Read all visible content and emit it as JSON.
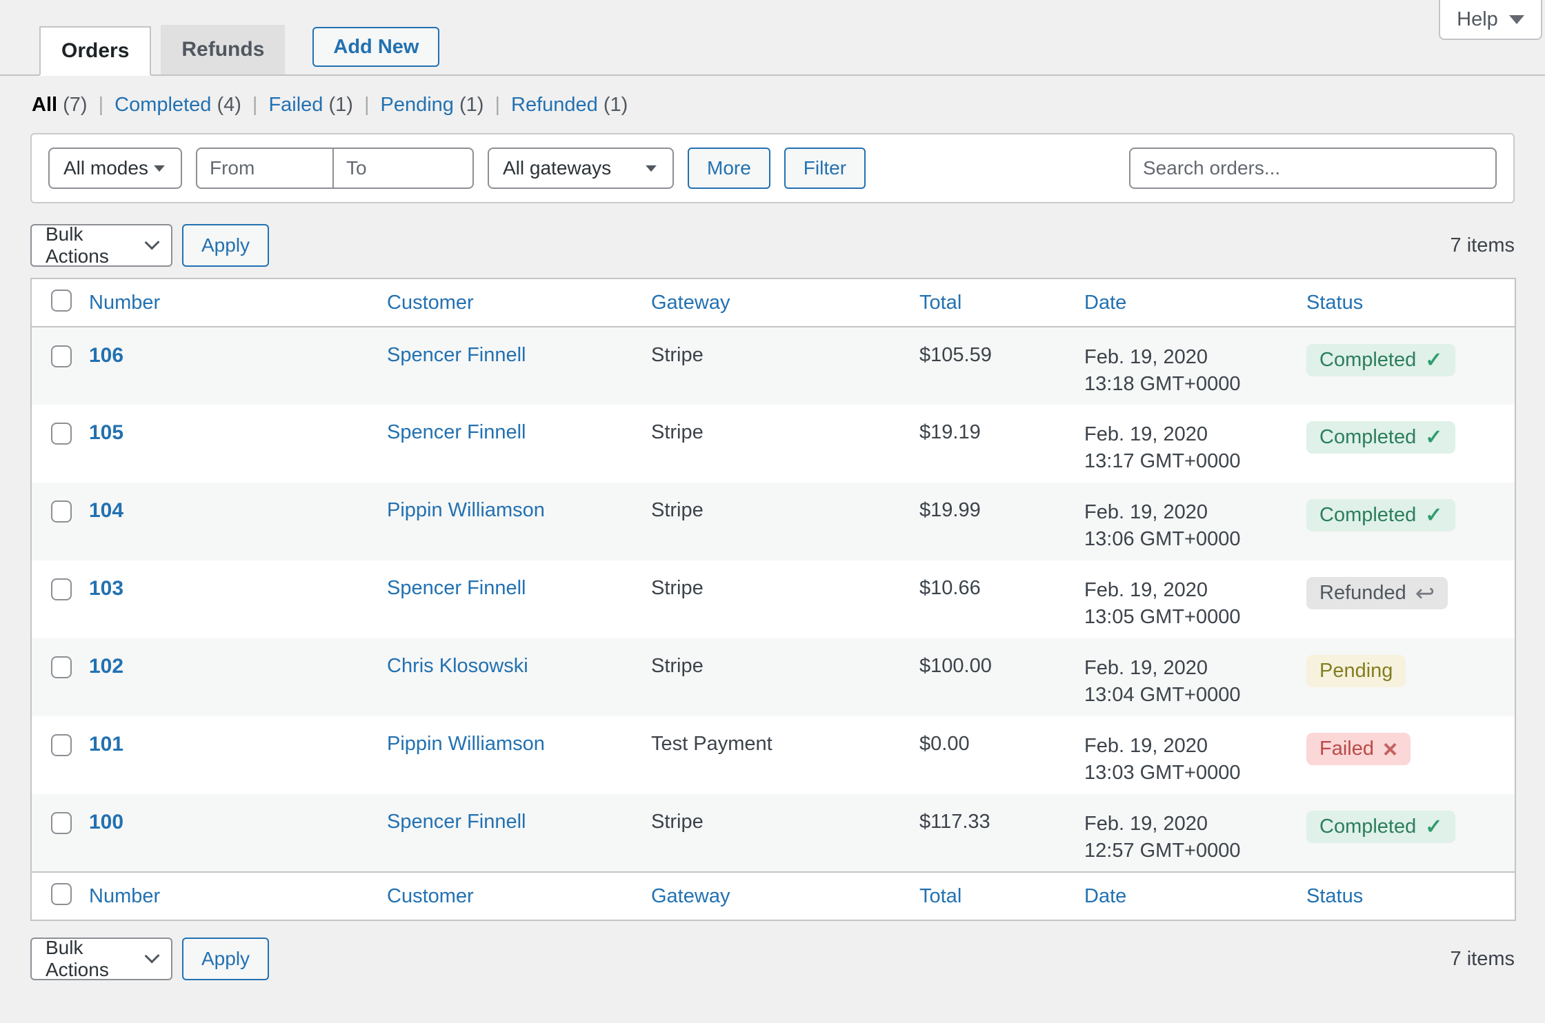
{
  "help": {
    "label": "Help"
  },
  "tabs": {
    "orders": "Orders",
    "refunds": "Refunds",
    "add_new": "Add New"
  },
  "views": {
    "separator": "|",
    "items": [
      {
        "label": "All",
        "count": "(7)",
        "current": true
      },
      {
        "label": "Completed",
        "count": "(4)",
        "current": false
      },
      {
        "label": "Failed",
        "count": "(1)",
        "current": false
      },
      {
        "label": "Pending",
        "count": "(1)",
        "current": false
      },
      {
        "label": "Refunded",
        "count": "(1)",
        "current": false
      }
    ]
  },
  "filters": {
    "mode_select": "All modes",
    "from_placeholder": "From",
    "to_placeholder": "To",
    "gateway_select": "All gateways",
    "more_label": "More",
    "filter_label": "Filter",
    "search_placeholder": "Search orders..."
  },
  "bulk": {
    "select_label": "Bulk Actions",
    "apply_label": "Apply",
    "items_count": "7 items"
  },
  "table": {
    "columns": {
      "number": "Number",
      "customer": "Customer",
      "gateway": "Gateway",
      "total": "Total",
      "date": "Date",
      "status": "Status"
    },
    "rows": [
      {
        "number": "106",
        "customer": "Spencer Finnell",
        "gateway": "Stripe",
        "total": "$105.59",
        "date_line1": "Feb. 19, 2020",
        "date_line2": "13:18 GMT+0000",
        "status": "Completed",
        "status_key": "completed",
        "status_icon": "✓"
      },
      {
        "number": "105",
        "customer": "Spencer Finnell",
        "gateway": "Stripe",
        "total": "$19.19",
        "date_line1": "Feb. 19, 2020",
        "date_line2": "13:17 GMT+0000",
        "status": "Completed",
        "status_key": "completed",
        "status_icon": "✓"
      },
      {
        "number": "104",
        "customer": "Pippin Williamson",
        "gateway": "Stripe",
        "total": "$19.99",
        "date_line1": "Feb. 19, 2020",
        "date_line2": "13:06 GMT+0000",
        "status": "Completed",
        "status_key": "completed",
        "status_icon": "✓"
      },
      {
        "number": "103",
        "customer": "Spencer Finnell",
        "gateway": "Stripe",
        "total": "$10.66",
        "date_line1": "Feb. 19, 2020",
        "date_line2": "13:05 GMT+0000",
        "status": "Refunded",
        "status_key": "refunded",
        "status_icon": "↩"
      },
      {
        "number": "102",
        "customer": "Chris Klosowski",
        "gateway": "Stripe",
        "total": "$100.00",
        "date_line1": "Feb. 19, 2020",
        "date_line2": "13:04 GMT+0000",
        "status": "Pending",
        "status_key": "pending",
        "status_icon": ""
      },
      {
        "number": "101",
        "customer": "Pippin Williamson",
        "gateway": "Test Payment",
        "total": "$0.00",
        "date_line1": "Feb. 19, 2020",
        "date_line2": "13:03 GMT+0000",
        "status": "Failed",
        "status_key": "failed",
        "status_icon": "×"
      },
      {
        "number": "100",
        "customer": "Spencer Finnell",
        "gateway": "Stripe",
        "total": "$117.33",
        "date_line1": "Feb. 19, 2020",
        "date_line2": "12:57 GMT+0000",
        "status": "Completed",
        "status_key": "completed",
        "status_icon": "✓"
      }
    ]
  },
  "colors": {
    "accent_blue": "#2271b1",
    "page_bg": "#f0f0f1",
    "border_gray": "#c3c4c7",
    "stripe_row": "#f6f7f7",
    "completed_bg": "#dff1e8",
    "completed_text": "#2c7d5e",
    "refunded_bg": "#e5e5e6",
    "refunded_text": "#50575e",
    "pending_bg": "#f6f2de",
    "pending_text": "#847d20",
    "failed_bg": "#fbd7d7",
    "failed_text": "#b94a48"
  }
}
